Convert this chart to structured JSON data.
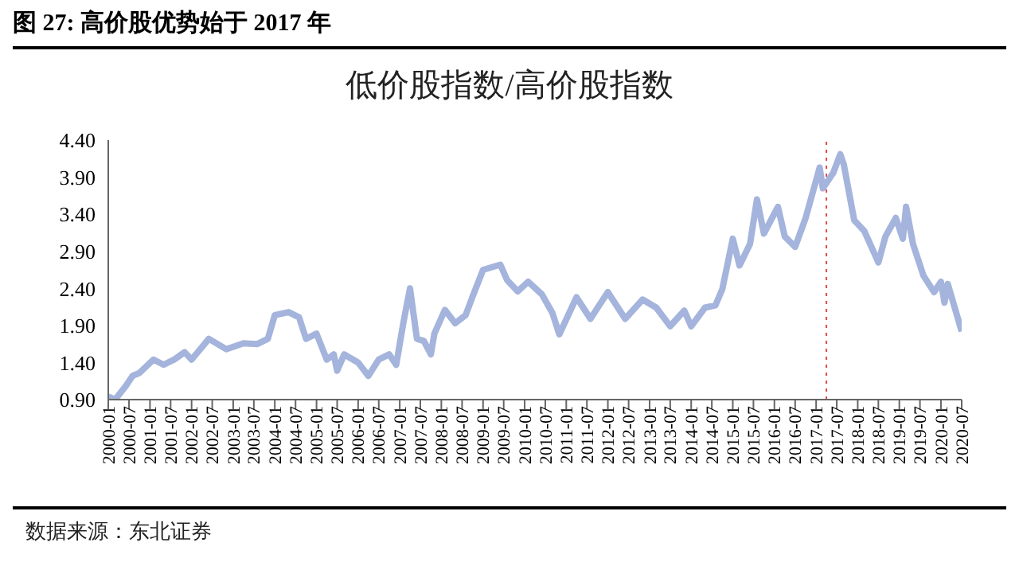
{
  "chart_data": {
    "type": "line",
    "title": "图 27: 高价股优势始于 2017 年",
    "subtitle": "低价股指数/高价股指数",
    "annotations": [
      "数据来源：东北证券"
    ],
    "x": [
      "2000-01",
      "2000-03",
      "2000-06",
      "2000-08",
      "2000-10",
      "2001-02",
      "2001-05",
      "2001-08",
      "2001-11",
      "2002-01",
      "2002-06",
      "2002-11",
      "2003-04",
      "2003-08",
      "2003-11",
      "2004-01",
      "2004-05",
      "2004-08",
      "2004-10",
      "2005-01",
      "2005-04",
      "2005-06",
      "2005-07",
      "2005-09",
      "2006-01",
      "2006-04",
      "2006-07",
      "2006-10",
      "2006-12",
      "2007-02",
      "2007-04",
      "2007-06",
      "2007-08",
      "2007-10",
      "2007-11",
      "2008-02",
      "2008-05",
      "2008-08",
      "2008-10",
      "2009-01",
      "2009-06",
      "2009-08",
      "2009-11",
      "2010-02",
      "2010-06",
      "2010-09",
      "2010-11",
      "2011-04",
      "2011-08",
      "2012-01",
      "2012-06",
      "2012-11",
      "2013-03",
      "2013-07",
      "2013-11",
      "2014-01",
      "2014-05",
      "2014-08",
      "2014-10",
      "2015-01",
      "2015-03",
      "2015-06",
      "2015-08",
      "2015-10",
      "2016-02",
      "2016-04",
      "2016-07",
      "2016-10",
      "2017-02",
      "2017-03",
      "2017-06",
      "2017-08",
      "2017-09",
      "2017-12",
      "2018-03",
      "2018-07",
      "2018-09",
      "2018-12",
      "2019-02",
      "2019-03",
      "2019-05",
      "2019-08",
      "2019-11",
      "2020-01",
      "2020-02",
      "2020-03",
      "2020-07"
    ],
    "series": [
      {
        "color": "#a4b4dc",
        "values": [
          0.94,
          0.9,
          1.08,
          1.22,
          1.26,
          1.44,
          1.37,
          1.44,
          1.54,
          1.44,
          1.72,
          1.58,
          1.66,
          1.65,
          1.72,
          2.04,
          2.08,
          2.01,
          1.72,
          1.79,
          1.44,
          1.51,
          1.29,
          1.51,
          1.4,
          1.22,
          1.44,
          1.51,
          1.37,
          1.93,
          2.4,
          1.72,
          1.69,
          1.51,
          1.79,
          2.11,
          1.93,
          2.04,
          2.29,
          2.65,
          2.72,
          2.51,
          2.36,
          2.49,
          2.32,
          2.07,
          1.78,
          2.28,
          1.99,
          2.35,
          1.99,
          2.25,
          2.14,
          1.89,
          2.1,
          1.89,
          2.14,
          2.17,
          2.39,
          3.07,
          2.71,
          3.0,
          3.6,
          3.14,
          3.5,
          3.1,
          2.96,
          3.35,
          4.03,
          3.75,
          3.96,
          4.21,
          4.07,
          3.32,
          3.17,
          2.75,
          3.1,
          3.35,
          3.07,
          3.5,
          3.0,
          2.57,
          2.35,
          2.49,
          2.21,
          2.46,
          1.82
        ]
      }
    ],
    "xlim": [
      "2000-01",
      "2020-07"
    ],
    "xticks": [
      "2000-01",
      "2000-07",
      "2001-01",
      "2001-07",
      "2002-01",
      "2002-07",
      "2003-01",
      "2003-07",
      "2004-01",
      "2004-07",
      "2005-01",
      "2005-07",
      "2006-01",
      "2006-07",
      "2007-01",
      "2007-07",
      "2008-01",
      "2008-07",
      "2009-01",
      "2009-07",
      "2010-01",
      "2010-07",
      "2011-01",
      "2011-07",
      "2012-01",
      "2012-07",
      "2013-01",
      "2013-07",
      "2014-01",
      "2014-07",
      "2015-01",
      "2015-07",
      "2016-01",
      "2016-07",
      "2017-01",
      "2017-07",
      "2018-01",
      "2018-07",
      "2019-01",
      "2019-07",
      "2020-01",
      "2020-07"
    ],
    "ylim": [
      0.9,
      4.4
    ],
    "yticks": [
      {
        "value": 0.9,
        "label": "0.90"
      },
      {
        "value": 1.4,
        "label": "1.40"
      },
      {
        "value": 1.9,
        "label": "1.90"
      },
      {
        "value": 2.4,
        "label": "2.40"
      },
      {
        "value": 2.9,
        "label": "2.90"
      },
      {
        "value": 3.4,
        "label": "3.40"
      },
      {
        "value": 3.9,
        "label": "3.90"
      },
      {
        "value": 4.4,
        "label": "4.40"
      }
    ],
    "ref_lines": [
      {
        "axis": "x",
        "value": "2017-04",
        "color": "#e8484a",
        "line_style": "dotted"
      }
    ],
    "grid": false,
    "line_style": "solid"
  }
}
